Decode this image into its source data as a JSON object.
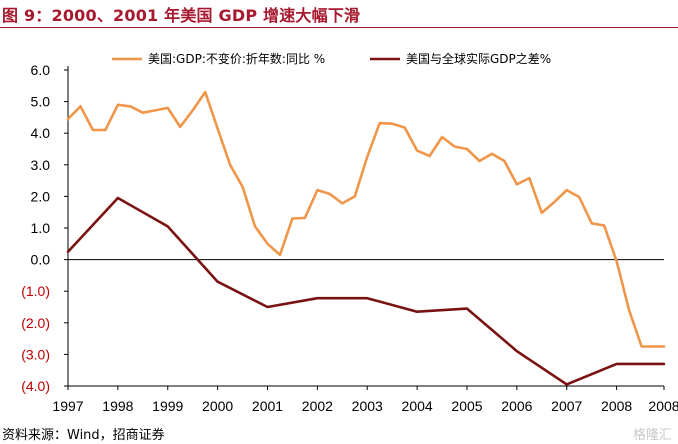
{
  "title": "图 9：2000、2001 年美国 GDP 增速大幅下滑",
  "source": "资料来源：Wind，招商证券",
  "watermark": "格隆汇",
  "colors": {
    "title": "#a6192e",
    "series1": "#f0964a",
    "series2": "#7a1212",
    "negative_tick": "#c00000"
  },
  "chart_data": {
    "type": "line",
    "title": "",
    "xlabel": "",
    "ylabel": "",
    "xlim": [
      1997,
      2008.95
    ],
    "ylim": [
      -4,
      6
    ],
    "grid": false,
    "legend_position": "top",
    "x_tick_labels": [
      "1997",
      "1998",
      "1999",
      "2000",
      "2001",
      "2002",
      "2003",
      "2004",
      "2005",
      "2006",
      "2007",
      "2008",
      "2008"
    ],
    "x_tick_values": [
      1997,
      1998,
      1999,
      2000,
      2001,
      2002,
      2003,
      2004,
      2005,
      2006,
      2007,
      2008,
      2008.95
    ],
    "y_tick_labels": [
      "6.0",
      "5.0",
      "4.0",
      "3.0",
      "2.0",
      "1.0",
      "0.0",
      "(1.0)",
      "(2.0)",
      "(3.0)",
      "(4.0)"
    ],
    "y_tick_values": [
      6,
      5,
      4,
      3,
      2,
      1,
      0,
      -1,
      -2,
      -3,
      -4
    ],
    "series": [
      {
        "name": "美国:GDP:不变价:折年数:同比 %",
        "color": "#f0964a",
        "x": [
          1997.0,
          1997.25,
          1997.5,
          1997.75,
          1998.0,
          1998.25,
          1998.5,
          1998.75,
          1999.0,
          1999.25,
          1999.5,
          1999.75,
          2000.0,
          2000.25,
          2000.5,
          2000.75,
          2001.0,
          2001.25,
          2001.5,
          2001.75,
          2002.0,
          2002.25,
          2002.5,
          2002.75,
          2003.0,
          2003.25,
          2003.5,
          2003.75,
          2004.0,
          2004.25,
          2004.5,
          2004.75,
          2005.0,
          2005.25,
          2005.5,
          2005.75,
          2006.0,
          2006.25,
          2006.5,
          2006.75,
          2007.0,
          2007.25,
          2007.5,
          2007.75,
          2008.0,
          2008.25,
          2008.5,
          2008.75,
          2008.95
        ],
        "y": [
          4.45,
          4.85,
          4.1,
          4.1,
          4.9,
          4.85,
          4.65,
          4.72,
          4.8,
          4.2,
          4.72,
          5.3,
          4.15,
          3.0,
          2.3,
          1.05,
          0.5,
          0.15,
          1.3,
          1.32,
          2.2,
          2.08,
          1.78,
          2.0,
          3.25,
          4.32,
          4.3,
          4.18,
          3.45,
          3.28,
          3.88,
          3.58,
          3.5,
          3.12,
          3.35,
          3.12,
          2.38,
          2.58,
          1.48,
          1.82,
          2.2,
          1.98,
          1.15,
          1.08,
          -0.05,
          -1.6,
          -2.75,
          -2.75,
          -2.75
        ]
      },
      {
        "name": "美国与全球实际GDP之差%",
        "color": "#7a1212",
        "x": [
          1997.0,
          1998.0,
          1999.0,
          2000.0,
          2001.0,
          2002.0,
          2003.0,
          2004.0,
          2005.0,
          2006.0,
          2007.0,
          2008.0,
          2008.95
        ],
        "y": [
          0.25,
          1.95,
          1.05,
          -0.7,
          -1.5,
          -1.22,
          -1.22,
          -1.65,
          -1.55,
          -2.9,
          -3.95,
          -3.3,
          -3.3
        ]
      }
    ]
  }
}
